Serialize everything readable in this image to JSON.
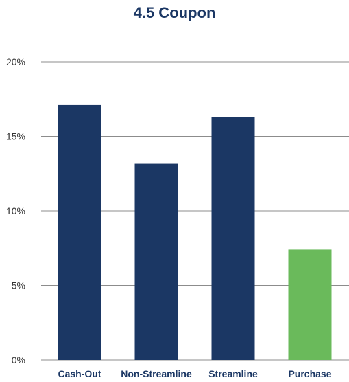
{
  "chart_data": {
    "type": "bar",
    "title": "4.5 Coupon",
    "categories": [
      "Cash-Out",
      "Non-Streamline",
      "Streamline",
      "Purchase"
    ],
    "values": [
      17.1,
      13.2,
      16.3,
      7.4
    ],
    "ylim": [
      0,
      20
    ],
    "yticks": [
      "0%",
      "5%",
      "10%",
      "15%",
      "20%"
    ],
    "ytick_values": [
      0,
      5,
      10,
      15,
      20
    ],
    "bar_colors": [
      "#1b3764",
      "#1b3764",
      "#1b3764",
      "#6aba5b"
    ],
    "grid": true,
    "legend": "none",
    "xlabel": "",
    "ylabel": ""
  }
}
